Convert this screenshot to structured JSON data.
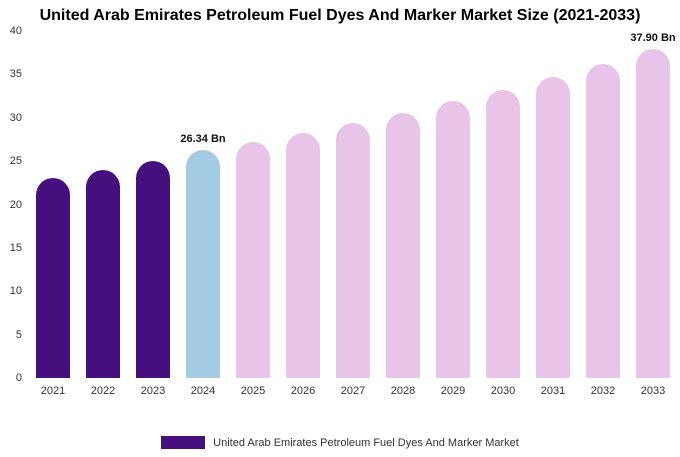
{
  "title": "United Arab Emirates Petroleum Fuel Dyes And Marker Market Size (2021-2033)",
  "legend": {
    "label": "United Arab Emirates Petroleum Fuel Dyes And Marker Market",
    "swatch_color": "#45107E"
  },
  "colors": {
    "historical_purple": "#45107E",
    "current_blue": "#A3CBE1",
    "forecast_pink": "#E8C4E9"
  },
  "chart_data": {
    "type": "bar",
    "title": "United Arab Emirates Petroleum Fuel Dyes And Marker Market Size (2021-2033)",
    "xlabel": "",
    "ylabel": "",
    "categories": [
      "2021",
      "2022",
      "2023",
      "2024",
      "2025",
      "2026",
      "2027",
      "2028",
      "2029",
      "2030",
      "2031",
      "2032",
      "2033"
    ],
    "values": [
      23,
      24,
      25,
      26.34,
      27.2,
      28.3,
      29.4,
      30.6,
      31.9,
      33.2,
      34.7,
      36.2,
      37.9
    ],
    "bar_colors": [
      "#45107E",
      "#45107E",
      "#45107E",
      "#A3CBE1",
      "#E8C4E9",
      "#E8C4E9",
      "#E8C4E9",
      "#E8C4E9",
      "#E8C4E9",
      "#E8C4E9",
      "#E8C4E9",
      "#E8C4E9",
      "#E8C4E9"
    ],
    "annotations": [
      {
        "category": "2024",
        "text": "26.34 Bn"
      },
      {
        "category": "2033",
        "text": "37.90 Bn"
      }
    ],
    "ylim": [
      0,
      40
    ],
    "yticks": [
      0,
      5,
      10,
      15,
      20,
      25,
      30,
      35,
      40
    ],
    "grid": false,
    "legend_position": "bottom"
  }
}
